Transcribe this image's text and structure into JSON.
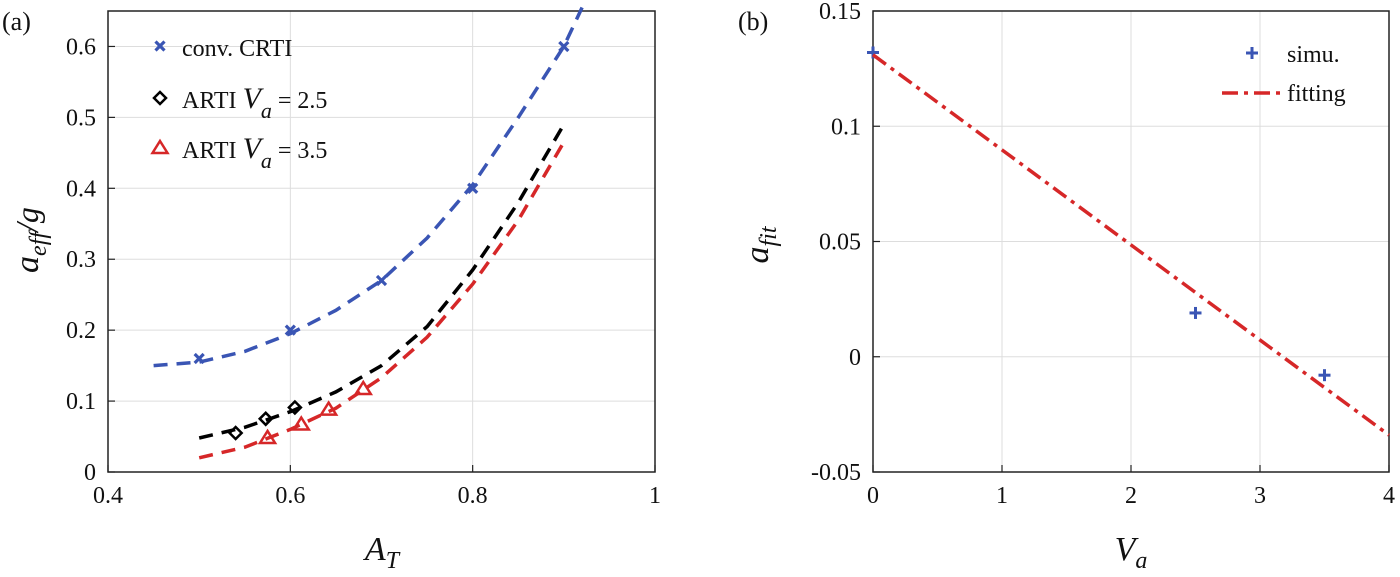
{
  "panels": {
    "a": {
      "label": "(a)"
    },
    "b": {
      "label": "(b)"
    }
  },
  "chart_data": [
    {
      "type": "scatter",
      "panel": "(a)",
      "xlabel": {
        "main": "A",
        "sub": "T"
      },
      "ylabel": {
        "main": "a",
        "sub": "eff",
        "suffix": "/g"
      },
      "xlim": [
        0.4,
        1.0
      ],
      "ylim": [
        0,
        0.65
      ],
      "xticks": [
        0.4,
        0.6,
        0.8,
        1.0
      ],
      "xtick_labels": [
        "0.4",
        "0.6",
        "0.8",
        "1"
      ],
      "yticks": [
        0,
        0.1,
        0.2,
        0.3,
        0.4,
        0.5,
        0.6
      ],
      "ytick_labels": [
        "0",
        "0.1",
        "0.2",
        "0.3",
        "0.4",
        "0.5",
        "0.6"
      ],
      "grid": true,
      "legend_position": "top-left",
      "legend": [
        {
          "prefix": "conv. CRTI",
          "var": "",
          "sub": "",
          "value": "",
          "marker": "x",
          "color": "#3a55b4"
        },
        {
          "prefix": "ARTI ",
          "var": "V",
          "sub": "a",
          "value": " = 2.5",
          "marker": "diamond",
          "color": "#000000"
        },
        {
          "prefix": "ARTI ",
          "var": "V",
          "sub": "a",
          "value": " = 3.5",
          "marker": "triangle",
          "color": "#d62728"
        }
      ],
      "series": [
        {
          "marker": "x",
          "color": "#3a55b4",
          "points": [
            [
              0.5,
              0.16
            ],
            [
              0.6,
              0.2
            ],
            [
              0.7,
              0.27
            ],
            [
              0.8,
              0.4
            ],
            [
              0.9,
              0.6
            ]
          ],
          "fit": [
            [
              0.45,
              0.15
            ],
            [
              0.5,
              0.155
            ],
            [
              0.55,
              0.17
            ],
            [
              0.6,
              0.195
            ],
            [
              0.65,
              0.228
            ],
            [
              0.7,
              0.27
            ],
            [
              0.75,
              0.33
            ],
            [
              0.8,
              0.405
            ],
            [
              0.85,
              0.5
            ],
            [
              0.9,
              0.6
            ],
            [
              0.92,
              0.655
            ]
          ]
        },
        {
          "marker": "diamond",
          "color": "#000000",
          "points": [
            [
              0.54,
              0.055
            ],
            [
              0.573,
              0.075
            ],
            [
              0.605,
              0.091
            ]
          ],
          "fit": [
            [
              0.5,
              0.048
            ],
            [
              0.55,
              0.063
            ],
            [
              0.6,
              0.085
            ],
            [
              0.65,
              0.113
            ],
            [
              0.7,
              0.15
            ],
            [
              0.75,
              0.205
            ],
            [
              0.8,
              0.285
            ],
            [
              0.85,
              0.38
            ],
            [
              0.9,
              0.49
            ]
          ]
        },
        {
          "marker": "triangle",
          "color": "#d62728",
          "points": [
            [
              0.575,
              0.048
            ],
            [
              0.612,
              0.067
            ],
            [
              0.642,
              0.088
            ],
            [
              0.68,
              0.117
            ]
          ],
          "fit": [
            [
              0.5,
              0.02
            ],
            [
              0.55,
              0.035
            ],
            [
              0.6,
              0.06
            ],
            [
              0.65,
              0.09
            ],
            [
              0.7,
              0.133
            ],
            [
              0.75,
              0.19
            ],
            [
              0.8,
              0.265
            ],
            [
              0.85,
              0.355
            ],
            [
              0.9,
              0.465
            ]
          ]
        }
      ]
    },
    {
      "type": "scatter",
      "panel": "(b)",
      "xlabel": {
        "main": "V",
        "sub": "a"
      },
      "ylabel": {
        "main": "a",
        "sub": "fit"
      },
      "xlim": [
        0,
        4
      ],
      "ylim": [
        -0.05,
        0.15
      ],
      "xticks": [
        0,
        1,
        2,
        3,
        4
      ],
      "xtick_labels": [
        "0",
        "1",
        "2",
        "3",
        "4"
      ],
      "yticks": [
        -0.05,
        0,
        0.05,
        0.1,
        0.15
      ],
      "ytick_labels": [
        "-0.05",
        "0",
        "0.05",
        "0.1",
        "0.15"
      ],
      "grid": true,
      "legend_position": "top-right",
      "legend": [
        {
          "label": "simu.",
          "marker": "plus",
          "color": "#3a55b4"
        },
        {
          "label": "fitting",
          "marker": "dashdot",
          "color": "#d62728"
        }
      ],
      "series": [
        {
          "name": "simu.",
          "marker": "plus",
          "color": "#3a55b4",
          "points": [
            [
              0,
              0.132
            ],
            [
              2.5,
              0.019
            ],
            [
              3.5,
              -0.008
            ]
          ]
        },
        {
          "name": "fitting",
          "marker": "dashdot",
          "color": "#d62728",
          "line": [
            [
              0,
              0.131
            ],
            [
              4,
              -0.034
            ]
          ]
        }
      ]
    }
  ]
}
